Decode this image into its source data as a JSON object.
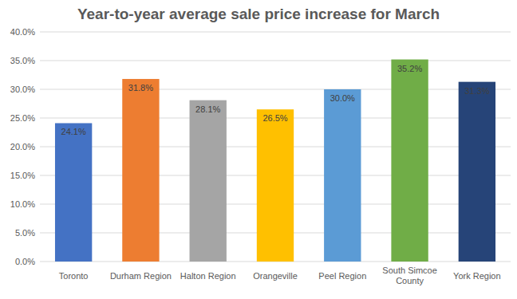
{
  "chart_data": {
    "type": "bar",
    "title": "Year-to-year average sale price increase for March",
    "categories": [
      "Toronto",
      "Durham Region",
      "Halton Region",
      "Orangeville",
      "Peel Region",
      "South Simcoe County",
      "York Region"
    ],
    "values": [
      24.1,
      31.8,
      28.1,
      26.5,
      30.0,
      35.2,
      31.3
    ],
    "value_labels": [
      "24.1%",
      "31.8%",
      "28.1%",
      "26.5%",
      "30.0%",
      "35.2%",
      "31.3%"
    ],
    "colors": [
      "#4472c4",
      "#ed7d31",
      "#a5a5a5",
      "#ffc000",
      "#5b9bd5",
      "#70ad47",
      "#264478"
    ],
    "ylim": [
      0,
      40
    ],
    "yticks": [
      {
        "value": 0,
        "label": "0.0%"
      },
      {
        "value": 5,
        "label": "5.0%"
      },
      {
        "value": 10,
        "label": "10.0%"
      },
      {
        "value": 15,
        "label": "15.0%"
      },
      {
        "value": 20,
        "label": "20.0%"
      },
      {
        "value": 25,
        "label": "25.0%"
      },
      {
        "value": 30,
        "label": "30.0%"
      },
      {
        "value": 35,
        "label": "35.0%"
      },
      {
        "value": 40,
        "label": "40.0%"
      }
    ],
    "grid": true,
    "data_labels": true
  }
}
